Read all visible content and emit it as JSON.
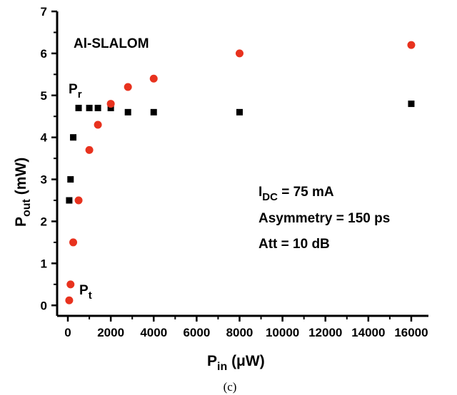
{
  "chart_data": {
    "type": "scatter",
    "title": "Al-SLALOM",
    "xlabel": {
      "base": "P",
      "sub": "in",
      "unit": " (μW)"
    },
    "ylabel": {
      "base": "P",
      "sub": "out",
      "unit": " (mW)"
    },
    "xlim": [
      -500,
      16800
    ],
    "ylim": [
      -0.25,
      7
    ],
    "xticks": [
      0,
      2000,
      4000,
      6000,
      8000,
      10000,
      12000,
      14000,
      16000
    ],
    "yticks": [
      0,
      1,
      2,
      3,
      4,
      5,
      6,
      7
    ],
    "grid": false,
    "series": [
      {
        "name": "Pr",
        "marker": "square",
        "color": "#000000",
        "x": [
          62.5,
          125,
          250,
          500,
          1000,
          1400,
          2000,
          2800,
          4000,
          8000,
          16000
        ],
        "y": [
          2.5,
          3.0,
          4.0,
          4.7,
          4.7,
          4.7,
          4.7,
          4.6,
          4.6,
          4.6,
          4.8
        ]
      },
      {
        "name": "Pt",
        "marker": "circle",
        "color": "#e8321e",
        "x": [
          62.5,
          125,
          250,
          500,
          1000,
          1400,
          2000,
          2800,
          4000,
          8000,
          16000
        ],
        "y": [
          0.12,
          0.5,
          1.5,
          2.5,
          3.7,
          4.3,
          4.8,
          5.2,
          5.4,
          6.0,
          6.2
        ]
      }
    ],
    "series_labels": [
      {
        "base": "P",
        "sub": "r"
      },
      {
        "base": "P",
        "sub": "t"
      }
    ],
    "annotations": {
      "idc": {
        "base": "I",
        "sub": "DC",
        "rest": " = 75 mA"
      },
      "asymmetry": "Asymmetry = 150 ps",
      "att": "Att = 10 dB"
    },
    "caption": "(c)"
  }
}
